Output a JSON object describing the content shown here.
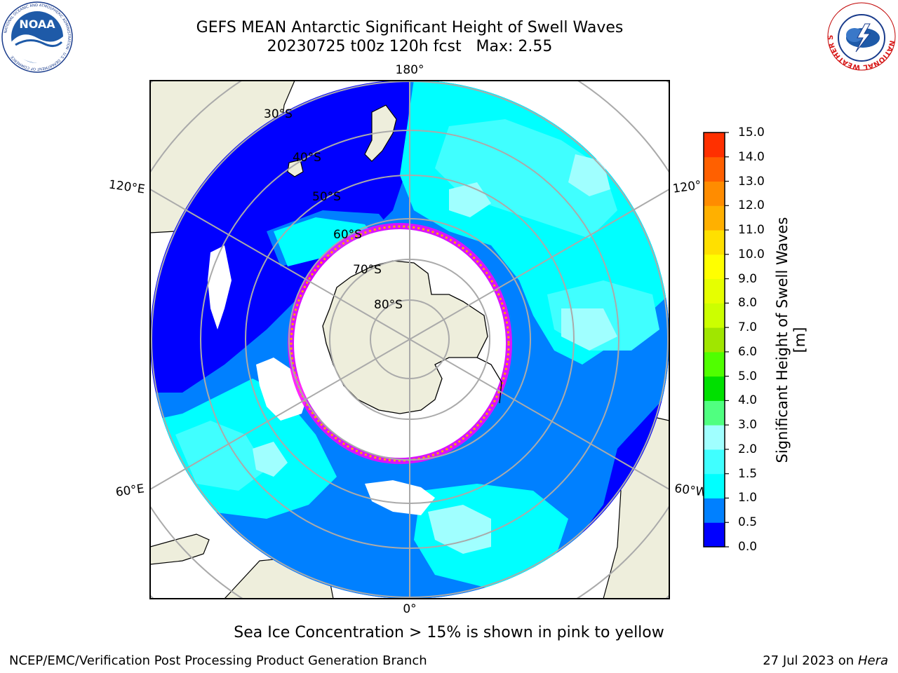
{
  "title": {
    "line1": "GEFS MEAN Antarctic Significant Height of Swell Waves",
    "line2": "20230725 t00z 120h fcst   Max: 2.55"
  },
  "map": {
    "projection": "south polar stereographic",
    "longitude_labels": [
      "180°",
      "120°E",
      "120°",
      "60°E",
      "60°W",
      "0°"
    ],
    "latitude_labels": [
      "30°S",
      "40°S",
      "50°S",
      "60°S",
      "70°S",
      "80°S"
    ],
    "ocean_color": "#00ffff",
    "land_color": "#eeeedc",
    "sea_ice_color": "#ffffff",
    "ice_edge_colors": [
      "#ff00ff",
      "#ffa500",
      "#ffff00"
    ]
  },
  "colorbar": {
    "label": "Significant Height of Swell Waves [m]",
    "ticks": [
      "15.0",
      "14.0",
      "13.0",
      "12.0",
      "11.0",
      "10.0",
      "9.0",
      "8.0",
      "7.0",
      "6.0",
      "5.0",
      "4.0",
      "3.0",
      "2.0",
      "1.5",
      "1.0",
      "0.5",
      "0.0"
    ],
    "colors": [
      "#0000ff",
      "#0080ff",
      "#00ffff",
      "#40ffff",
      "#a0ffff",
      "#50ff80",
      "#00e000",
      "#50ff00",
      "#a0e600",
      "#ccff00",
      "#e6ff00",
      "#ffff00",
      "#ffe000",
      "#ffb000",
      "#ff8c00",
      "#ff6000",
      "#ff3000",
      "#ff0000"
    ]
  },
  "note": "Sea Ice Concentration > 15% is shown in pink to yellow",
  "footer": {
    "left": "NCEP/EMC/Verification Post Processing Product Generation Branch",
    "right_prefix": "27 Jul 2023 on ",
    "right_host": "Hera"
  },
  "logos": {
    "noaa": {
      "text": "NOAA",
      "ring_text": "NATIONAL OCEANIC AND ATMOSPHERIC ADMINISTRATION · U.S. DEPARTMENT OF COMMERCE"
    },
    "nws": {
      "ring_text": "NATIONAL WEATHER SERVICE"
    }
  }
}
